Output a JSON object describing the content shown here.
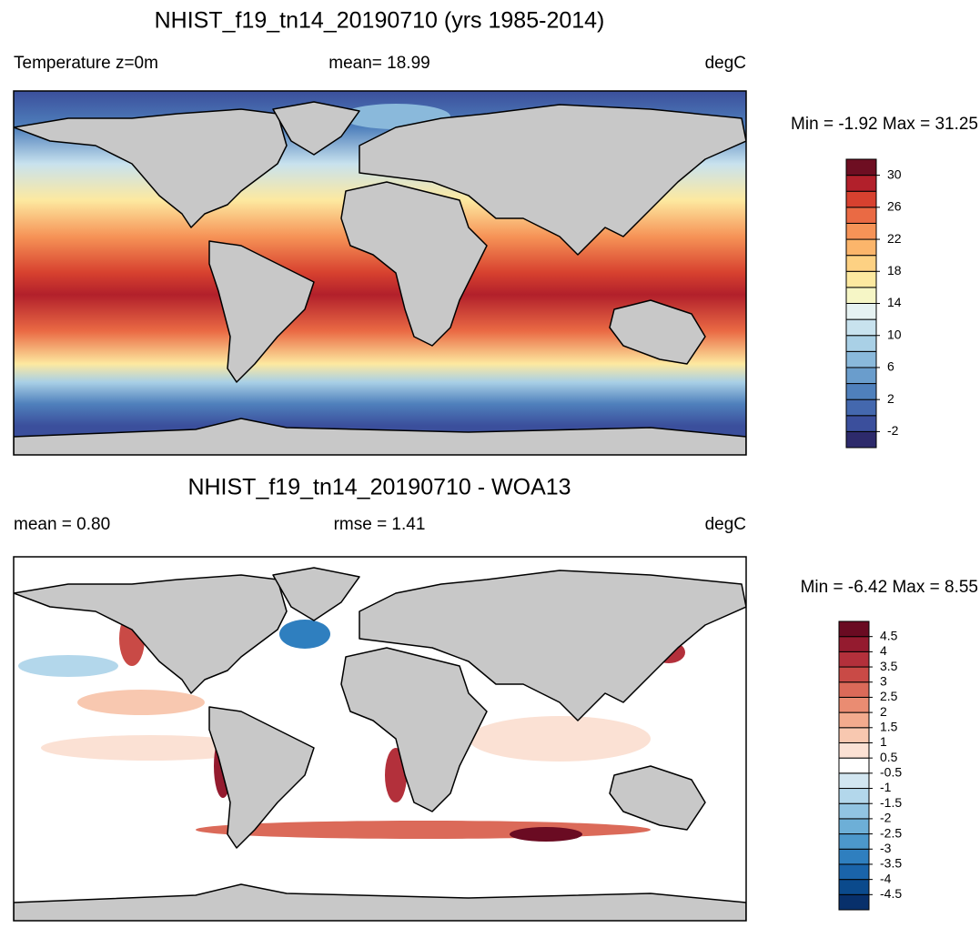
{
  "panels": [
    {
      "title": "NHIST_f19_tn14_20190710 (yrs 1985-2014)",
      "left_label": "Temperature z=0m",
      "center_label": "mean=  18.99",
      "right_label": "degC",
      "range_label": "Min =  -1.92 Max =  31.25",
      "colorbar": {
        "lim": [
          -4,
          32
        ],
        "ticks": [
          30,
          26,
          22,
          18,
          14,
          10,
          6,
          2,
          -2
        ],
        "colors": [
          "#2d2a6b",
          "#3b4f9c",
          "#4468ae",
          "#4f80bc",
          "#6a9dcc",
          "#8ab9db",
          "#a9d0e6",
          "#c8e2ee",
          "#e6f2f2",
          "#f6f6c6",
          "#fde9a0",
          "#fdd183",
          "#fbb56b",
          "#f69357",
          "#ea6a44",
          "#d7412f",
          "#b2202b",
          "#6e0e22"
        ]
      }
    },
    {
      "title": "NHIST_f19_tn14_20190710 - WOA13",
      "left_label": "mean =   0.80",
      "center_label": "rmse =   1.41",
      "right_label": "degC",
      "range_label": "Min =  -6.42 Max =   8.55",
      "colorbar": {
        "ticks": [
          4.5,
          4,
          3.5,
          3,
          2.5,
          2,
          1.5,
          1,
          0.5,
          -0.5,
          -1,
          -1.5,
          -2,
          -2.5,
          -3,
          -3.5,
          -4,
          -4.5
        ],
        "colors": [
          "#08306b",
          "#0b4a8c",
          "#1a64aa",
          "#2f7fbf",
          "#4c98cb",
          "#6dafd7",
          "#91c4e2",
          "#b3d7eb",
          "#d2e6f1",
          "#ffffff",
          "#fbe1d4",
          "#f8c8b0",
          "#f3ab8e",
          "#ea8c72",
          "#db6a59",
          "#c94a46",
          "#b3303b",
          "#941b2f",
          "#6a0b22"
        ]
      }
    }
  ]
}
